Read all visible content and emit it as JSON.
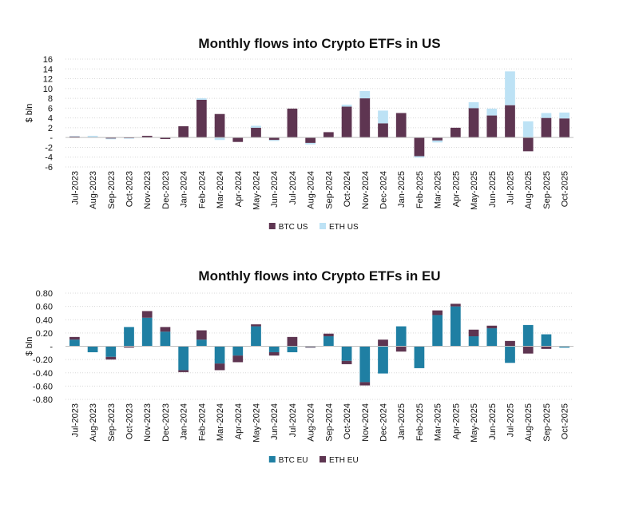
{
  "chart_data": [
    {
      "type": "bar",
      "stacked": true,
      "title": "Monthly flows into Crypto ETFs in US",
      "xlabel": "",
      "ylabel": "$ bln",
      "ylim": [
        -6,
        16
      ],
      "yticks": [
        16,
        14,
        12,
        10,
        8,
        6,
        4,
        2,
        0,
        -2,
        -4,
        -6
      ],
      "ytick_labels": [
        "16",
        "14",
        "12",
        "10",
        "8",
        "6",
        "4",
        "2",
        "-",
        "-2",
        "-4",
        "-6"
      ],
      "grid": true,
      "legend_position": "bottom",
      "categories": [
        "Jul-2023",
        "Aug-2023",
        "Sep-2023",
        "Oct-2023",
        "Nov-2023",
        "Dec-2023",
        "Jan-2024",
        "Feb-2024",
        "Mar-2024",
        "Apr-2024",
        "May-2024",
        "Jun-2024",
        "Jul-2024",
        "Aug-2024",
        "Sep-2024",
        "Oct-2024",
        "Nov-2024",
        "Dec-2024",
        "Jan-2025",
        "Feb-2025",
        "Mar-2025",
        "Apr-2025",
        "May-2025",
        "Jun-2025",
        "Jul-2025",
        "Aug-2025",
        "Sep-2025",
        "Oct-2025"
      ],
      "series": [
        {
          "name": "BTC US",
          "color": "#5e3551",
          "values": [
            0.2,
            0.05,
            -0.2,
            -0.15,
            0.35,
            -0.3,
            2.3,
            7.7,
            4.8,
            -0.9,
            2.0,
            -0.5,
            5.9,
            -1.1,
            1.1,
            6.3,
            8.0,
            2.9,
            5.0,
            -3.8,
            -0.6,
            2.0,
            6.0,
            4.5,
            6.6,
            -2.8,
            4.0,
            3.9
          ]
        },
        {
          "name": "ETH US",
          "color": "#bde2f5",
          "values": [
            0.1,
            0.3,
            -0.15,
            -0.1,
            0.0,
            0.0,
            0.0,
            0.3,
            -0.5,
            0.0,
            0.4,
            -0.2,
            0.0,
            -0.3,
            0.0,
            0.4,
            1.5,
            2.6,
            0.0,
            -0.3,
            -0.4,
            0.0,
            1.2,
            1.4,
            6.9,
            3.3,
            1.0,
            1.2
          ]
        }
      ]
    },
    {
      "type": "bar",
      "stacked": true,
      "title": "Monthly flows into Crypto ETFs in EU",
      "xlabel": "",
      "ylabel": "$ bln",
      "ylim": [
        -0.8,
        0.8
      ],
      "yticks": [
        0.8,
        0.6,
        0.4,
        0.2,
        0,
        -0.2,
        -0.4,
        -0.6,
        -0.8
      ],
      "ytick_labels": [
        "0.80",
        "0.60",
        "0.40",
        "0.20",
        "-",
        "-0.20",
        "-0.40",
        "-0.60",
        "-0.80"
      ],
      "grid": true,
      "legend_position": "bottom",
      "categories": [
        "Jul-2023",
        "Aug-2023",
        "Sep-2023",
        "Oct-2023",
        "Nov-2023",
        "Dec-2023",
        "Jan-2024",
        "Feb-2024",
        "Mar-2024",
        "Apr-2024",
        "May-2024",
        "Jun-2024",
        "Jul-2024",
        "Aug-2024",
        "Sep-2024",
        "Oct-2024",
        "Nov-2024",
        "Dec-2024",
        "Jan-2025",
        "Feb-2025",
        "Mar-2025",
        "Apr-2025",
        "May-2025",
        "Jun-2025",
        "Jul-2025",
        "Aug-2025",
        "Sep-2025",
        "Oct-2025"
      ],
      "series": [
        {
          "name": "BTC EU",
          "color": "#1f7fa3",
          "values": [
            0.1,
            -0.09,
            -0.16,
            0.29,
            0.43,
            0.22,
            -0.36,
            0.1,
            -0.26,
            -0.14,
            0.3,
            -0.09,
            -0.09,
            -0.01,
            0.15,
            -0.22,
            -0.54,
            -0.41,
            0.3,
            -0.33,
            0.47,
            0.6,
            0.15,
            0.27,
            -0.25,
            0.32,
            0.18,
            -0.02
          ]
        },
        {
          "name": "ETH EU",
          "color": "#5e3551",
          "values": [
            0.04,
            0.0,
            -0.04,
            -0.02,
            0.1,
            0.07,
            -0.03,
            0.14,
            -0.1,
            -0.1,
            0.03,
            -0.05,
            0.14,
            -0.01,
            0.04,
            -0.05,
            -0.05,
            0.1,
            -0.08,
            0.0,
            0.07,
            0.04,
            0.1,
            0.04,
            0.08,
            -0.11,
            -0.04,
            0.0
          ]
        }
      ]
    }
  ]
}
